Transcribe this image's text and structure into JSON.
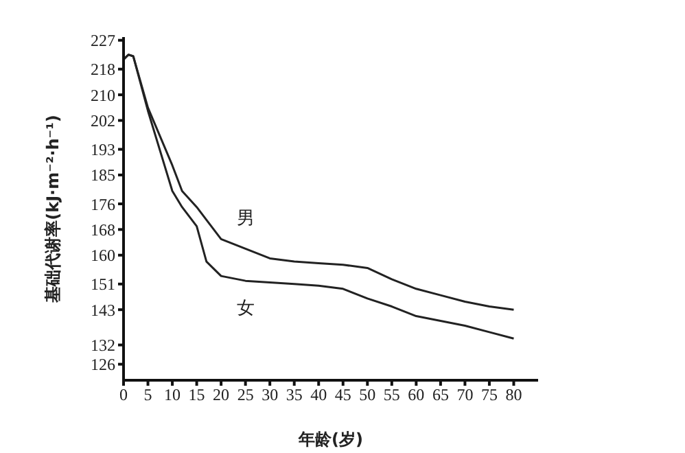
{
  "chart_data": {
    "type": "line",
    "xlabel": "年龄(岁)",
    "ylabel": "基础代谢率(kJ·m⁻²·h⁻¹)",
    "x": [
      0,
      1,
      2,
      5,
      10,
      12,
      15,
      17,
      20,
      25,
      30,
      35,
      40,
      45,
      50,
      55,
      60,
      65,
      70,
      75,
      80
    ],
    "series": [
      {
        "name": "男",
        "color": "#222222",
        "values": [
          221,
          222.5,
          222,
          206,
          188,
          180,
          175,
          171,
          165,
          162,
          159,
          158,
          157.5,
          157,
          156,
          152.5,
          149.5,
          147.5,
          145.5,
          144,
          143
        ]
      },
      {
        "name": "女",
        "color": "#222222",
        "values": [
          221,
          222.5,
          222,
          205,
          180,
          175,
          169,
          158,
          153.5,
          152,
          151.5,
          151,
          150.5,
          149.5,
          146.5,
          144,
          141,
          139.5,
          138,
          136,
          134
        ]
      }
    ],
    "xlim": [
      0,
      85
    ],
    "xticks": [
      0,
      5,
      10,
      15,
      20,
      25,
      30,
      35,
      40,
      45,
      50,
      55,
      60,
      65,
      70,
      75,
      80
    ],
    "ylim": [
      121,
      228
    ],
    "yticks": [
      126,
      132,
      143,
      151,
      160,
      168,
      176,
      185,
      193,
      202,
      210,
      218,
      227
    ],
    "grid": false,
    "legend": false,
    "marker": "none",
    "line_style": "solid"
  }
}
